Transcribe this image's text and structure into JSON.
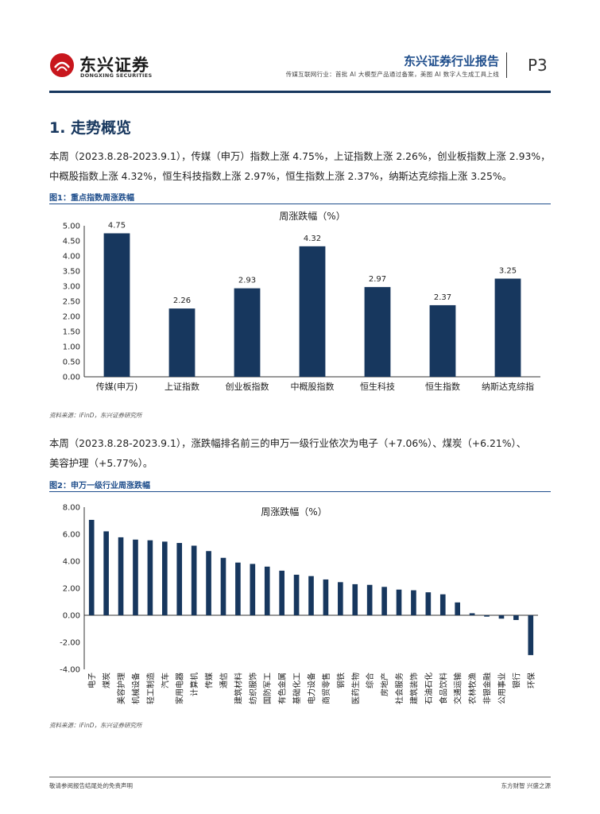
{
  "header": {
    "brand": "东兴证券",
    "brand_en": "DONGXING SECURITIES",
    "report_type": "东兴证券行业报告",
    "subtitle": "传媒互联网行业：首批 AI 大模型产品通过备案，美图 AI 数字人生成工具上线",
    "page": "P3"
  },
  "section": {
    "title": "1. 走势概览"
  },
  "paragraphs": {
    "p1_line1": "本周（2023.8.28-2023.9.1），传媒（申万）指数上涨 4.75%，上证指数上涨 2.26%，创业板指数上涨 2.93%，",
    "p1_line2": "中概股指数上涨 4.32%，恒生科技指数上涨 2.97%，恒生指数上涨 2.37%，纳斯达克综指上涨 3.25%。",
    "p2_line1": "本周（2023.8.28-2023.9.1），涨跌幅排名前三的申万一级行业依次为电子（+7.06%）、煤炭（+6.21%）、",
    "p2_line2": "美容护理（+5.77%）。"
  },
  "figure1": {
    "label": "图1：重点指数周涨跌幅",
    "source": "资料来源：iFinD，东兴证券研究所"
  },
  "figure2": {
    "label": "图2：申万一级行业周涨跌幅",
    "source": "资料来源：iFinD，东兴证券研究所"
  },
  "footer": {
    "left": "敬请参阅报告结尾处的免责声明",
    "right": "东方财智 兴盛之源"
  },
  "colors": {
    "bar": "#17375e",
    "accent": "#1f4e8c",
    "logo": "#c8161d"
  },
  "chart_data": [
    {
      "type": "bar",
      "title": "周涨跌幅（%）",
      "categories": [
        "传媒(申万)",
        "上证指数",
        "创业板指数",
        "中概股指数",
        "恒生科技",
        "恒生指数",
        "纳斯达克综指"
      ],
      "values": [
        4.75,
        2.26,
        2.93,
        4.32,
        2.97,
        2.37,
        3.25
      ],
      "data_labels": [
        "4.75",
        "2.26",
        "2.93",
        "4.32",
        "2.97",
        "2.37",
        "3.25"
      ],
      "ylim": [
        0,
        5
      ],
      "yticks": [
        "0.00",
        "0.50",
        "1.00",
        "1.50",
        "2.00",
        "2.50",
        "3.00",
        "3.50",
        "4.00",
        "4.50",
        "5.00"
      ],
      "xlabel": "",
      "ylabel": ""
    },
    {
      "type": "bar",
      "title": "周涨跌幅（%）",
      "categories": [
        "电子",
        "煤炭",
        "美容护理",
        "机械设备",
        "轻工制造",
        "汽车",
        "家用电器",
        "计算机",
        "传媒",
        "通信",
        "建筑材料",
        "纺织服饰",
        "国防军工",
        "有色金属",
        "基础化工",
        "电力设备",
        "商贸零售",
        "钢铁",
        "医药生物",
        "综合",
        "房地产",
        "社会服务",
        "建筑装饰",
        "石油石化",
        "食品饮料",
        "交通运输",
        "农林牧渔",
        "非银金融",
        "公用事业",
        "银行",
        "环保"
      ],
      "values": [
        7.06,
        6.21,
        5.77,
        5.6,
        5.55,
        5.45,
        5.35,
        5.15,
        4.75,
        4.25,
        3.9,
        3.8,
        3.6,
        3.3,
        3.0,
        2.9,
        2.65,
        2.45,
        2.3,
        2.25,
        2.1,
        1.9,
        1.85,
        1.7,
        1.55,
        0.95,
        0.15,
        -0.1,
        -0.25,
        -0.35,
        -2.95
      ],
      "ylim": [
        -4,
        8
      ],
      "yticks": [
        "-4.00",
        "-2.00",
        "0.00",
        "2.00",
        "4.00",
        "6.00",
        "8.00"
      ],
      "xlabel": "",
      "ylabel": ""
    }
  ]
}
